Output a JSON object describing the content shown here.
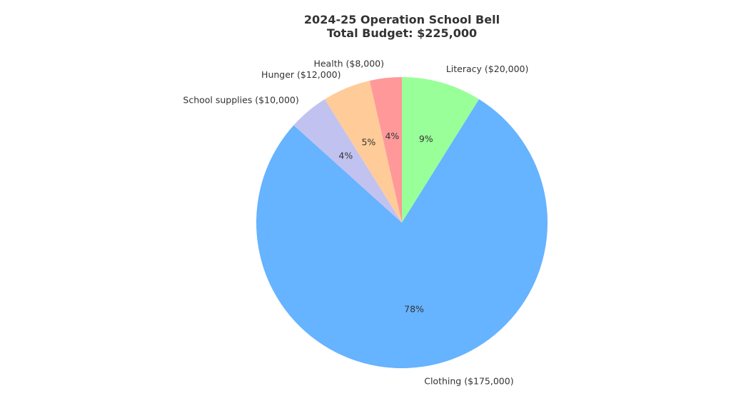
{
  "chart_data": {
    "type": "pie",
    "title_line1": "2024-25 Operation School Bell",
    "title_line2": "Total Budget: $225,000",
    "start_angle_deg": 90,
    "direction": "clockwise",
    "slices": [
      {
        "name": "Literacy",
        "value": 20000,
        "label": "Literacy ($20,000)",
        "pct": "9%",
        "color": "#99ff99"
      },
      {
        "name": "Clothing",
        "value": 175000,
        "label": "Clothing ($175,000)",
        "pct": "78%",
        "color": "#66b3ff"
      },
      {
        "name": "School supplies",
        "value": 10000,
        "label": "School supplies ($10,000)",
        "pct": "4%",
        "color": "#c2c2f0"
      },
      {
        "name": "Hunger",
        "value": 12000,
        "label": "Hunger ($12,000)",
        "pct": "5%",
        "color": "#ffcc99"
      },
      {
        "name": "Health",
        "value": 8000,
        "label": "Health ($8,000)",
        "pct": "4%",
        "color": "#ff9999"
      }
    ]
  }
}
